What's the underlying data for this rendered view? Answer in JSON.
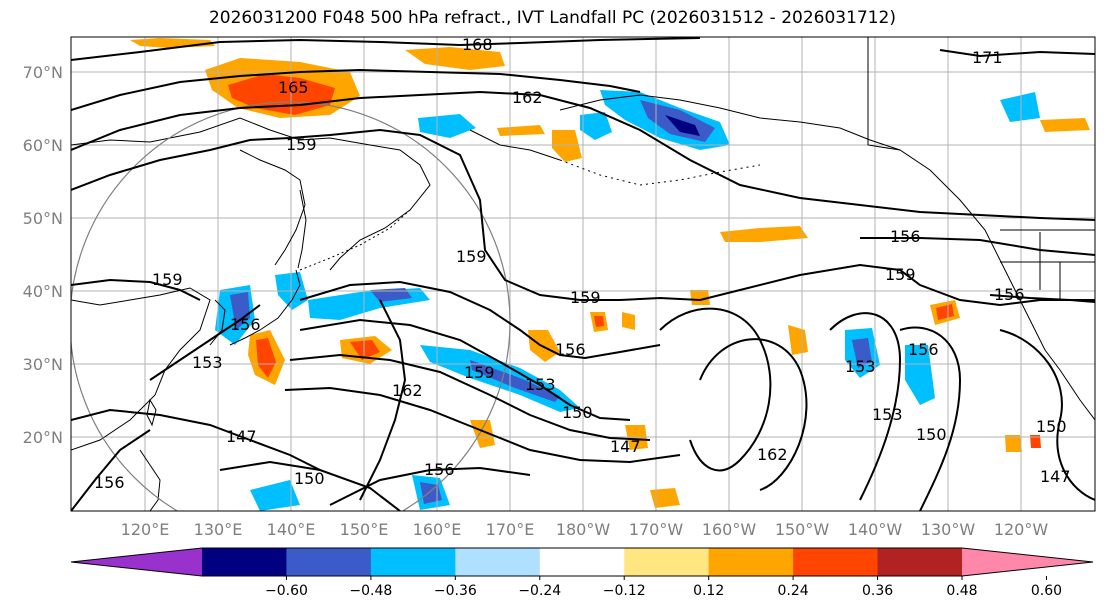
{
  "title": "2026031200 F048 500 hPa refract., IVT Landfall PC (2026031512 - 2026031712)",
  "map": {
    "lat_labels": [
      "70°N",
      "60°N",
      "50°N",
      "40°N",
      "30°N",
      "20°N"
    ],
    "lon_labels": [
      "120°E",
      "130°E",
      "140°E",
      "150°E",
      "160°E",
      "170°E",
      "180°W",
      "170°W",
      "160°W",
      "150°W",
      "140°W",
      "130°W",
      "120°W"
    ],
    "contour_labels": [
      "168",
      "171",
      "165",
      "162",
      "159",
      "159",
      "159",
      "159",
      "159",
      "156",
      "156",
      "156",
      "156",
      "156",
      "156",
      "153",
      "153",
      "153",
      "153",
      "150",
      "150",
      "150",
      "150",
      "147",
      "147",
      "147",
      "162",
      "162",
      "159"
    ]
  },
  "colorbar": {
    "tick_labels": [
      "−0.60",
      "−0.48",
      "−0.36",
      "−0.24",
      "−0.12",
      "0.12",
      "0.24",
      "0.36",
      "0.48",
      "0.60"
    ],
    "colors": [
      "#9932cc",
      "#000080",
      "#3a5bc8",
      "#00bfff",
      "#b0e0ff",
      "#ffffff",
      "#ffe680",
      "#ffa500",
      "#ff4500",
      "#b22222",
      "#ff88aa"
    ]
  },
  "colors": {
    "coast": "#000000",
    "grid": "#b3b3b3",
    "contour": "#000000"
  }
}
